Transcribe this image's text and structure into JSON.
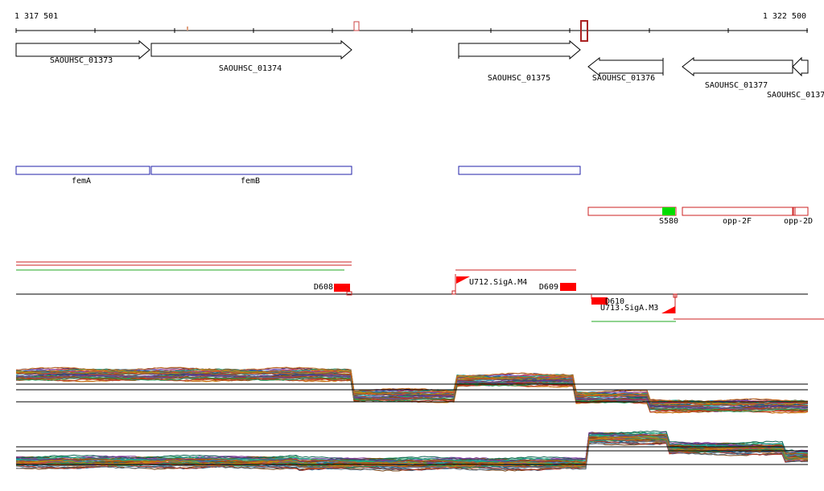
{
  "coordinates": {
    "start": "1 317 501",
    "end": "1 322 500"
  },
  "genes": [
    {
      "label": "SAOUHSC_01373",
      "strand": "+"
    },
    {
      "label": "SAOUHSC_01374",
      "strand": "+"
    },
    {
      "label": "SAOUHSC_01375",
      "strand": "+"
    },
    {
      "label": "SAOUHSC_01376",
      "strand": "-"
    },
    {
      "label": "SAOUHSC_01377",
      "strand": "-"
    },
    {
      "label": "SAOUHSC_0137",
      "strand": "-"
    }
  ],
  "gene_names": [
    {
      "label": "femA"
    },
    {
      "label": "femB"
    },
    {
      "label": ""
    }
  ],
  "regulatory_features": [
    {
      "label": "S580"
    },
    {
      "label": "opp-2F"
    },
    {
      "label": "opp-2D"
    }
  ],
  "transcription_units": [
    {
      "label": "D608"
    },
    {
      "label": "U712.SigA.M4"
    },
    {
      "label": "D609"
    },
    {
      "label": "D610"
    },
    {
      "label": "U713.SigA.M3"
    }
  ],
  "colors": {
    "gene_outline": "#000000",
    "name_box": "#2222aa",
    "feature_box": "#cc2222",
    "feature_highlight": "#00dd00",
    "marker_red": "#ff0000",
    "line_green": "#22aa22"
  }
}
